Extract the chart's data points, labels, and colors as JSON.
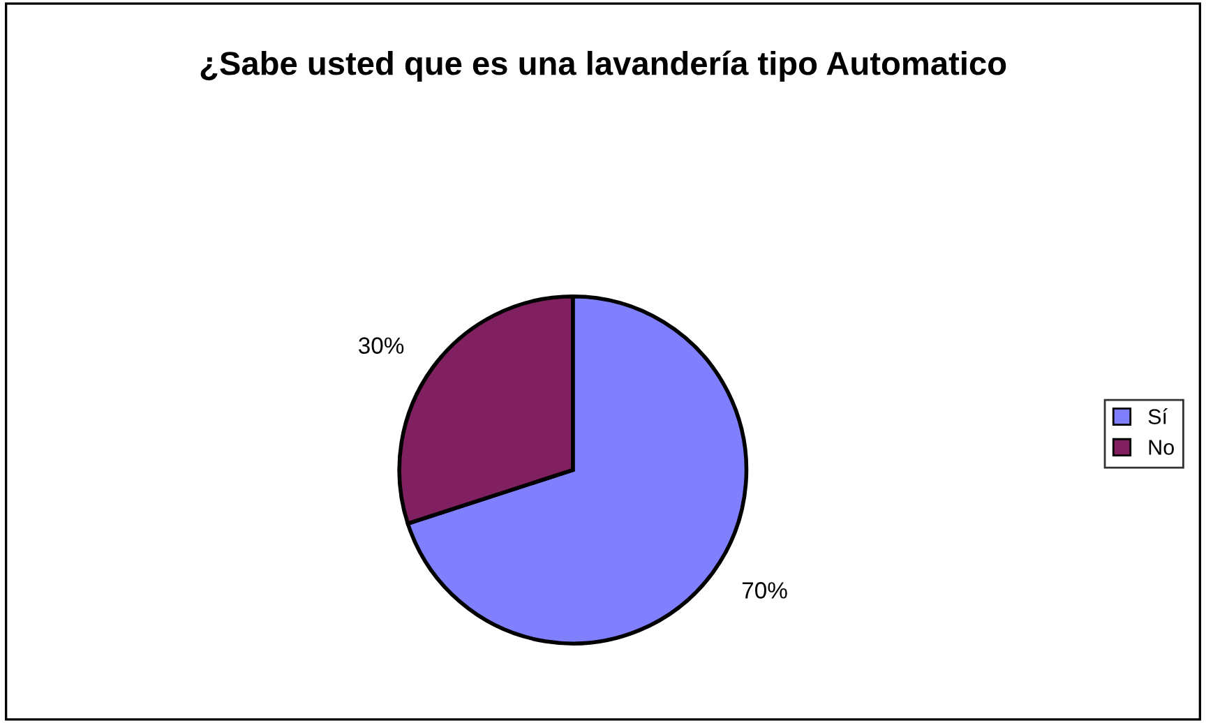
{
  "chart_data": {
    "type": "pie",
    "title": "¿Sabe usted que es una lavandería tipo Automatico",
    "categories": [
      "Sí",
      "No"
    ],
    "values": [
      70,
      30
    ],
    "colors": [
      "#8080ff",
      "#802060"
    ],
    "value_labels": [
      "70%",
      "30%"
    ],
    "legend": "right"
  }
}
